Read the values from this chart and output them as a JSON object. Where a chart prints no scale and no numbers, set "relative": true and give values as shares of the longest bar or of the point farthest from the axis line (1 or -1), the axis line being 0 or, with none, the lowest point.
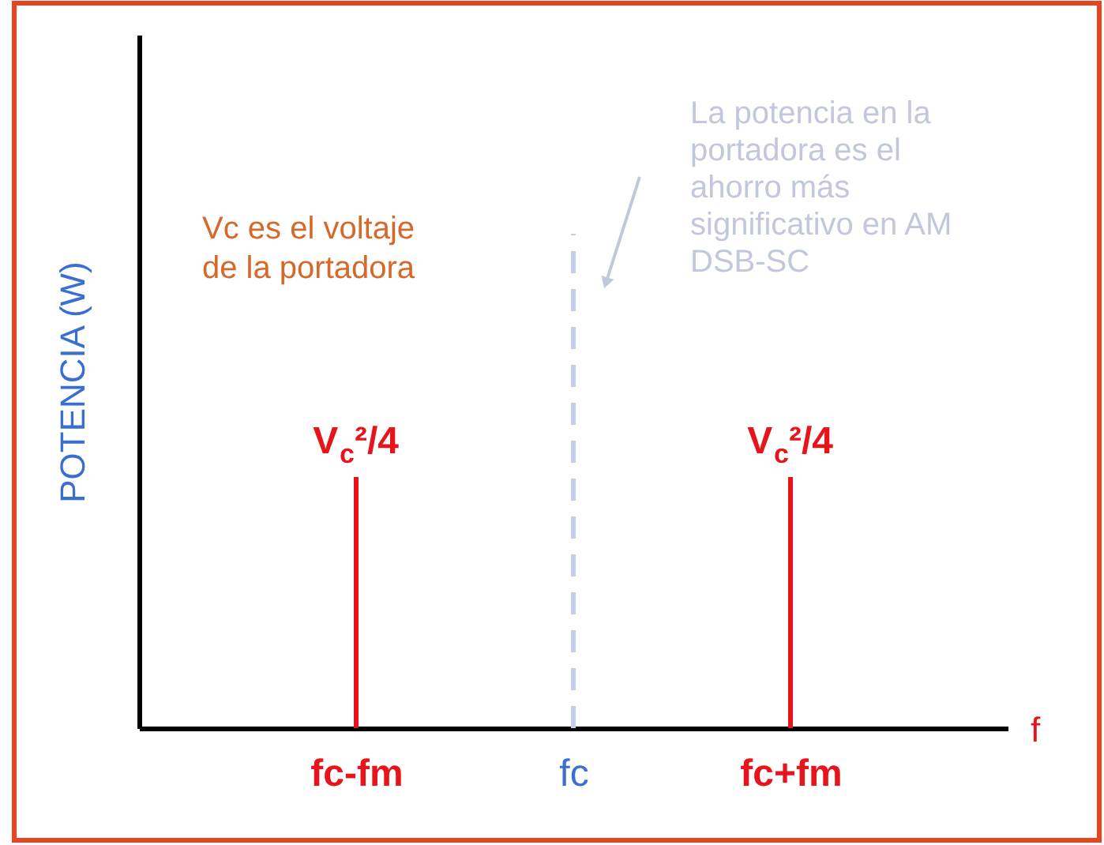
{
  "chart_data": {
    "type": "bar",
    "relative": true,
    "xlabel": "f",
    "ylabel": "POTENCIA (W)",
    "categories": [
      "fc-fm",
      "fc",
      "fc+fm"
    ],
    "series": [
      {
        "color": "#e8141c",
        "values": [
          1,
          null,
          1
        ]
      }
    ],
    "ref_lines": [
      {
        "axis": "x",
        "value": "fc",
        "color": "#c5cde8",
        "line_style": "dashed"
      }
    ],
    "annotations": [
      "Vc es el voltaje\nde la portadora",
      "La potencia en la\nportadora es el\nahorro más\nsignificativo en AM\nDSB-SC",
      {
        "text": "V$_{c}$²/4",
        "x": "fc-fm",
        "y": 1
      },
      {
        "text": "V$_{c}$²/4",
        "x": "fc+fm",
        "y": 1
      }
    ]
  }
}
